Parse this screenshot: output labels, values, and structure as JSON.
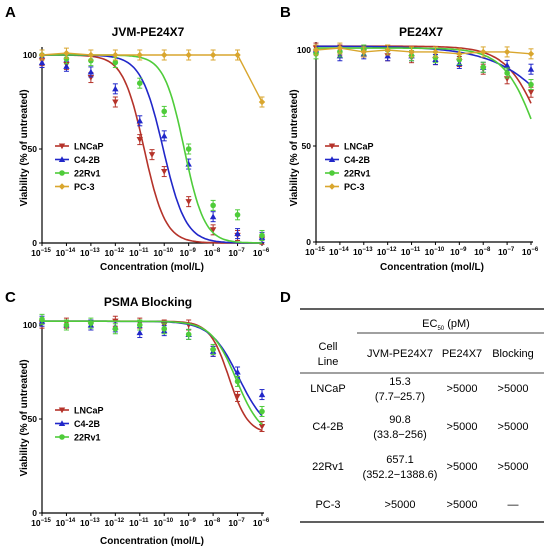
{
  "panel_letters": [
    "A",
    "B",
    "C",
    "D"
  ],
  "colors": {
    "LNCaP": "#b5332a",
    "C4-2B": "#2127c9",
    "22Rv1": "#4fcc3a",
    "PC-3": "#d9a62e"
  },
  "chart_data": [
    {
      "panel": "A",
      "type": "scatter",
      "title": "JVM-PE24X7",
      "xlabel": "Concentration (mol/L)",
      "ylabel": "Viability (% of untreated)",
      "xscale": "log",
      "xlim": [
        -15,
        -6
      ],
      "ylim": [
        0,
        100
      ],
      "xticks": [
        -15,
        -14,
        -13,
        -12,
        -11,
        -10,
        -9,
        -8,
        -7,
        -6
      ],
      "yticks": [
        0,
        50,
        100
      ],
      "x": [
        -15,
        -14,
        -13,
        -12,
        -11,
        -10.5,
        -10,
        -9.5,
        -9,
        -8,
        -7,
        -6
      ],
      "legend": "center-left",
      "series": [
        {
          "name": "LNCaP",
          "values": [
            97,
            95,
            88,
            75,
            55,
            47,
            38,
            null,
            22,
            7,
            4,
            2
          ],
          "fit": [
            -10.82,
            1.0,
            100,
            0
          ]
        },
        {
          "name": "C4-2B",
          "values": [
            96,
            94,
            91,
            82,
            65,
            null,
            57,
            null,
            42,
            14,
            5,
            3
          ],
          "fit": [
            -10.04,
            0.95,
            100,
            0
          ]
        },
        {
          "name": "22Rv1",
          "values": [
            100,
            98,
            97,
            96,
            85,
            null,
            70,
            null,
            50,
            20,
            15,
            4
          ],
          "fit": [
            -9.18,
            1.05,
            100,
            0
          ]
        },
        {
          "name": "PC-3",
          "values": [
            100,
            101,
            100,
            100,
            100,
            null,
            100,
            null,
            100,
            100,
            100,
            75
          ],
          "fit": null
        }
      ]
    },
    {
      "panel": "B",
      "type": "scatter",
      "title": "PE24X7",
      "xlabel": "Concentration (mol/L)",
      "ylabel": "Viability (% of untreated)",
      "xscale": "log",
      "xlim": [
        -15,
        -6
      ],
      "ylim": [
        0,
        100
      ],
      "xticks": [
        -15,
        -14,
        -13,
        -12,
        -11,
        -10,
        -9,
        -8,
        -7,
        -6
      ],
      "yticks": [
        0,
        50,
        100
      ],
      "x": [
        -15,
        -14,
        -13,
        -12,
        -11,
        -10,
        -9,
        -8,
        -7,
        -6
      ],
      "legend": "center-left",
      "series": [
        {
          "name": "LNCaP",
          "values": [
            101,
            100,
            99,
            97,
            96,
            95,
            94,
            90,
            85,
            78
          ],
          "fit": [
            -5.3,
            0.55,
            102,
            0
          ]
        },
        {
          "name": "C4-2B",
          "values": [
            100,
            97,
            98,
            97,
            97,
            95,
            93,
            91,
            92,
            90
          ],
          "fit": [
            -4.0,
            0.3,
            102,
            0
          ]
        },
        {
          "name": "22Rv1",
          "values": [
            98,
            99,
            100,
            100,
            97,
            96,
            95,
            91,
            88,
            82
          ],
          "fit": [
            -5.6,
            0.6,
            101,
            0
          ]
        },
        {
          "name": "PC-3",
          "values": [
            100,
            101,
            99,
            100,
            99,
            99,
            98,
            99,
            99,
            98
          ],
          "fit": null
        }
      ]
    },
    {
      "panel": "C",
      "type": "scatter",
      "title": "PSMA Blocking",
      "xlabel": "Concentration (mol/L)",
      "ylabel": "Viability (% of untreated)",
      "xscale": "log",
      "xlim": [
        -15,
        -6
      ],
      "ylim": [
        0,
        100
      ],
      "xticks": [
        -15,
        -14,
        -13,
        -12,
        -11,
        -10,
        -9,
        -8,
        -7,
        -6
      ],
      "yticks": [
        0,
        50,
        100
      ],
      "x": [
        -15,
        -14,
        -13,
        -12,
        -11,
        -10,
        -9,
        -8,
        -7,
        -6
      ],
      "legend": "bottom-left",
      "series": [
        {
          "name": "LNCaP",
          "values": [
            101,
            101,
            100,
            102,
            101,
            100,
            100,
            86,
            62,
            46
          ],
          "fit": [
            -7.35,
            1.1,
            102,
            42
          ]
        },
        {
          "name": "C4-2B",
          "values": [
            102,
            100,
            100,
            99,
            96,
            97,
            95,
            86,
            75,
            63
          ],
          "fit": [
            -6.95,
            0.75,
            102,
            42
          ]
        },
        {
          "name": "22Rv1",
          "values": [
            103,
            100,
            101,
            98,
            100,
            98,
            95,
            87,
            70,
            54
          ],
          "fit": [
            -7.05,
            0.85,
            102,
            40
          ]
        }
      ]
    }
  ],
  "table": {
    "header": "EC50 (pM)",
    "header_main": "EC",
    "header_sub": "50",
    "header_unit": " (pM)",
    "columns": [
      "Cell\nLine",
      "JVM-PE24X7",
      "PE24X7",
      "Blocking"
    ],
    "col_header": {
      "cell": "Cell",
      "line": "Line",
      "jvm": "JVM-PE24X7",
      "pe": "PE24X7",
      "block": "Blocking"
    },
    "rows": [
      {
        "cell": "LNCaP",
        "jvm": "15.3",
        "jvm_ci": "(7.7–25.7)",
        "pe": ">5000",
        "block": ">5000"
      },
      {
        "cell": "C4-2B",
        "jvm": "90.8",
        "jvm_ci": "(33.8−256)",
        "pe": ">5000",
        "block": ">5000"
      },
      {
        "cell": "22Rv1",
        "jvm": "657.1",
        "jvm_ci": "(352.2−1388.6)",
        "pe": ">5000",
        "block": ">5000"
      },
      {
        "cell": "PC-3",
        "jvm": ">5000",
        "jvm_ci": "",
        "pe": ">5000",
        "block": "—"
      }
    ]
  }
}
